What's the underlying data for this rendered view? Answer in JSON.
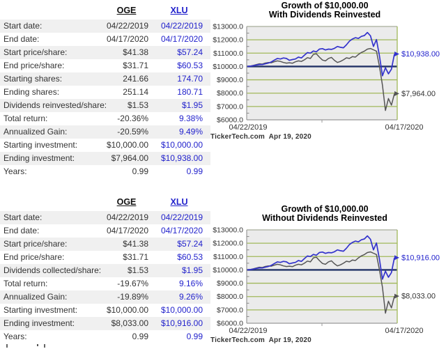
{
  "colors": {
    "xlu_text": "#2222cc",
    "oge_text": "#333333",
    "row_shade": "#f0f0f0",
    "plot_bg": "#ebebeb",
    "grid_green": "#a0b85a",
    "baseline_navy": "#223366",
    "axis_gray": "#999999",
    "series_blue": "#3333cc",
    "series_gray": "#555555"
  },
  "sections": [
    {
      "table": {
        "headers": {
          "col1": "OGE",
          "col2": "XLU"
        },
        "rows": [
          [
            "Start date:",
            "04/22/2019",
            "04/22/2019"
          ],
          [
            "End date:",
            "04/17/2020",
            "04/17/2020"
          ],
          [
            "Start price/share:",
            "$41.38",
            "$57.24"
          ],
          [
            "End price/share:",
            "$31.71",
            "$60.53"
          ],
          [
            "Starting shares:",
            "241.66",
            "174.70"
          ],
          [
            "Ending shares:",
            "251.14",
            "180.71"
          ],
          [
            "Dividends reinvested/share:",
            "$1.53",
            "$1.95"
          ],
          [
            "Total return:",
            "-20.36%",
            "9.38%"
          ],
          [
            "Annualized Gain:",
            "-20.59%",
            "9.49%"
          ],
          [
            "Starting investment:",
            "$10,000.00",
            "$10,000.00"
          ],
          [
            "Ending investment:",
            "$7,964.00",
            "$10,938.00"
          ],
          [
            "Years:",
            "0.99",
            "0.99"
          ]
        ]
      },
      "credit": "TickerTech.com  Apr 19, 2020"
    },
    {
      "table": {
        "headers": {
          "col1": "OGE",
          "col2": "XLU"
        },
        "rows": [
          [
            "Start date:",
            "04/22/2019",
            "04/22/2019"
          ],
          [
            "End date:",
            "04/17/2020",
            "04/17/2020"
          ],
          [
            "Start price/share:",
            "$41.38",
            "$57.24"
          ],
          [
            "End price/share:",
            "$31.71",
            "$60.53"
          ],
          [
            "Dividends collected/share:",
            "$1.53",
            "$1.95"
          ],
          [
            "Total return:",
            "-19.67%",
            "9.16%"
          ],
          [
            "Annualized Gain:",
            "-19.89%",
            "9.26%"
          ],
          [
            "Starting investment:",
            "$10,000.00",
            "$10,000.00"
          ],
          [
            "Ending investment:",
            "$8,033.00",
            "$10,916.00"
          ],
          [
            "Years:",
            "0.99",
            "0.99"
          ]
        ]
      },
      "credit": "TickerTech.com  Apr 19, 2020"
    }
  ],
  "chart_data": [
    {
      "type": "line",
      "title": "Growth of $10,000.00",
      "subtitle": "With Dividends Reinvested",
      "ylim": [
        6000,
        13000
      ],
      "y_tick_values": [
        13000,
        12000,
        11000,
        10000,
        9000,
        8000,
        7000,
        6000
      ],
      "y_tick_labels": [
        "$13000.0",
        "$12000.0",
        "$11000.0",
        "$10000.0",
        "$9000.0",
        "$8000.0",
        "$7000.0",
        "$6000.0"
      ],
      "x_tick_labels": [
        "04/22/2019",
        "04/17/2020"
      ],
      "baseline_value": 10000,
      "grid": true,
      "legend_position": "right-end-labels",
      "series": [
        {
          "name": "XLU",
          "color": "#3333cc",
          "end_label": "$10,938.00",
          "label_color": "#2222cc",
          "values": [
            10000,
            10020,
            10060,
            10110,
            10150,
            10140,
            10200,
            10260,
            10340,
            10480,
            10600,
            10560,
            10640,
            10600,
            10460,
            10520,
            10560,
            10700,
            10640,
            10840,
            11040,
            11000,
            11160,
            11100,
            11300,
            11340,
            11240,
            11300,
            11280,
            11360,
            11500,
            11440,
            11400,
            11620,
            11900,
            12060,
            12160,
            12100,
            12260,
            12320,
            12550,
            12300,
            11500,
            12020,
            10800,
            9300,
            9900,
            9450,
            9800,
            10938
          ]
        },
        {
          "name": "OGE",
          "color": "#555555",
          "end_label": "$7,964.00",
          "label_color": "#333333",
          "values": [
            10000,
            10030,
            10080,
            10140,
            10200,
            10180,
            10260,
            10300,
            10280,
            10360,
            10420,
            10380,
            10300,
            10250,
            10280,
            10240,
            10350,
            10420,
            10380,
            10500,
            10660,
            10600,
            10900,
            10950,
            10700,
            10480,
            10420,
            10600,
            10680,
            10460,
            10300,
            10380,
            10500,
            10650,
            10600,
            10740,
            10700,
            10900,
            11050,
            11150,
            11300,
            11350,
            11250,
            11150,
            10000,
            8600,
            6700,
            7600,
            7100,
            7964
          ]
        }
      ]
    },
    {
      "type": "line",
      "title": "Growth of $10,000.00",
      "subtitle": "Without Dividends Reinvested",
      "ylim": [
        6000,
        13000
      ],
      "y_tick_values": [
        13000,
        12000,
        11000,
        10000,
        9000,
        8000,
        7000,
        6000
      ],
      "y_tick_labels": [
        "$13000.0",
        "$12000.0",
        "$11000.0",
        "$10000.0",
        "$9000.0",
        "$8000.0",
        "$7000.0",
        "$6000.0"
      ],
      "x_tick_labels": [
        "04/22/2019",
        "04/17/2020"
      ],
      "baseline_value": 10000,
      "grid": true,
      "legend_position": "right-end-labels",
      "series": [
        {
          "name": "XLU",
          "color": "#3333cc",
          "end_label": "$10,916.00",
          "label_color": "#2222cc",
          "values": [
            10000,
            10020,
            10060,
            10110,
            10150,
            10140,
            10200,
            10260,
            10340,
            10480,
            10600,
            10560,
            10640,
            10600,
            10460,
            10520,
            10560,
            10700,
            10640,
            10840,
            11040,
            11000,
            11160,
            11100,
            11300,
            11340,
            11240,
            11300,
            11280,
            11360,
            11500,
            11440,
            11400,
            11620,
            11900,
            12060,
            12160,
            12100,
            12260,
            12320,
            12550,
            12300,
            11500,
            12020,
            10800,
            9300,
            9900,
            9450,
            9800,
            10916
          ]
        },
        {
          "name": "OGE",
          "color": "#555555",
          "end_label": "$8,033.00",
          "label_color": "#333333",
          "values": [
            10000,
            10030,
            10080,
            10140,
            10200,
            10180,
            10260,
            10300,
            10280,
            10360,
            10420,
            10380,
            10300,
            10250,
            10280,
            10240,
            10350,
            10420,
            10380,
            10500,
            10660,
            10600,
            10900,
            10950,
            10700,
            10480,
            10420,
            10600,
            10680,
            10460,
            10300,
            10380,
            10500,
            10650,
            10600,
            10740,
            10700,
            10900,
            11050,
            11150,
            11300,
            11350,
            11250,
            11150,
            10000,
            8700,
            6750,
            7650,
            7150,
            8033
          ]
        }
      ]
    }
  ]
}
